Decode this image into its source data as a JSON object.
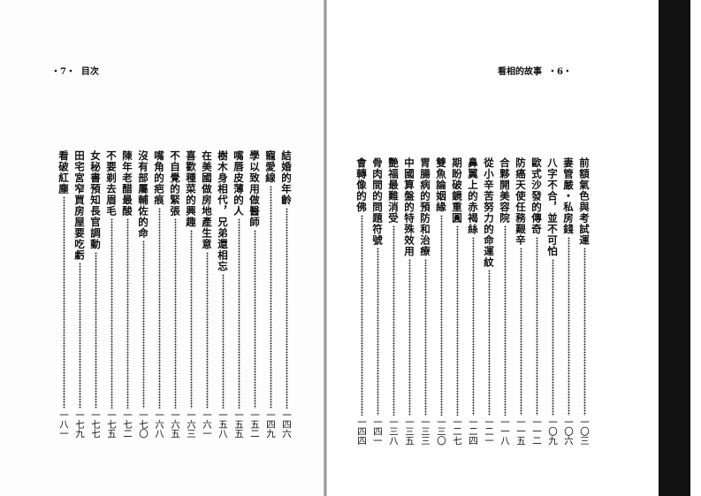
{
  "left_page": {
    "header": "・7・  目次",
    "entries": [
      {
        "title": "結婚的年齡",
        "page": "一四六"
      },
      {
        "title": "寵愛線",
        "page": "一四九"
      },
      {
        "title": "學以致用做醫師",
        "page": "一五二"
      },
      {
        "title": "嘴唇皮薄的人",
        "page": "一五五"
      },
      {
        "title": "樹木身相代，兄弟還相忘",
        "page": "一五八"
      },
      {
        "title": "在美國做房地產生意",
        "page": "一六一"
      },
      {
        "title": "喜歡種菜的興趣",
        "page": "一六三"
      },
      {
        "title": "不自覺的緊張",
        "page": "一六五"
      },
      {
        "title": "嘴角的疤痕",
        "page": "一六八"
      },
      {
        "title": "沒有部屬輔佐的命",
        "page": "一七〇"
      },
      {
        "title": "陳年老醋最酸",
        "page": "一七二"
      },
      {
        "title": "不要剃去眉毛",
        "page": "一七五"
      },
      {
        "title": "女秘書預知長官調動",
        "page": "一七七"
      },
      {
        "title": "田宅宮窄買房屋要吃虧",
        "page": "一七九"
      },
      {
        "title": "看破紅塵",
        "page": "一八一"
      }
    ]
  },
  "right_page": {
    "header": "看相的故事  ・6・",
    "entries": [
      {
        "title": "前額氣色與考試運",
        "page": "一〇三"
      },
      {
        "title": "妻管嚴・私房錢",
        "page": "一〇六"
      },
      {
        "title": "八字不合，並不可怕",
        "page": "一〇九"
      },
      {
        "title": "歐式沙發的傳奇",
        "page": "一一二"
      },
      {
        "title": "防癌天使任務艱辛",
        "page": "一一五"
      },
      {
        "title": "合夥開美容院",
        "page": "一一八"
      },
      {
        "title": "從小辛苦努力的命運紋",
        "page": "一二一"
      },
      {
        "title": "鼻翼上的赤褐絲",
        "page": "一二四"
      },
      {
        "title": "期盼破鏡重圓",
        "page": "一二七"
      },
      {
        "title": "雙魚論姻緣",
        "page": "一三〇"
      },
      {
        "title": "胃腸病的預防和治療",
        "page": "一三三"
      },
      {
        "title": "中國算盤的特殊效用",
        "page": "一三五"
      },
      {
        "title": "艷福最難消受",
        "page": "一三八"
      },
      {
        "title": "骨肉間的問題符號",
        "page": "一四一"
      },
      {
        "title": "會轉像的佛",
        "page": "一四四"
      }
    ]
  }
}
